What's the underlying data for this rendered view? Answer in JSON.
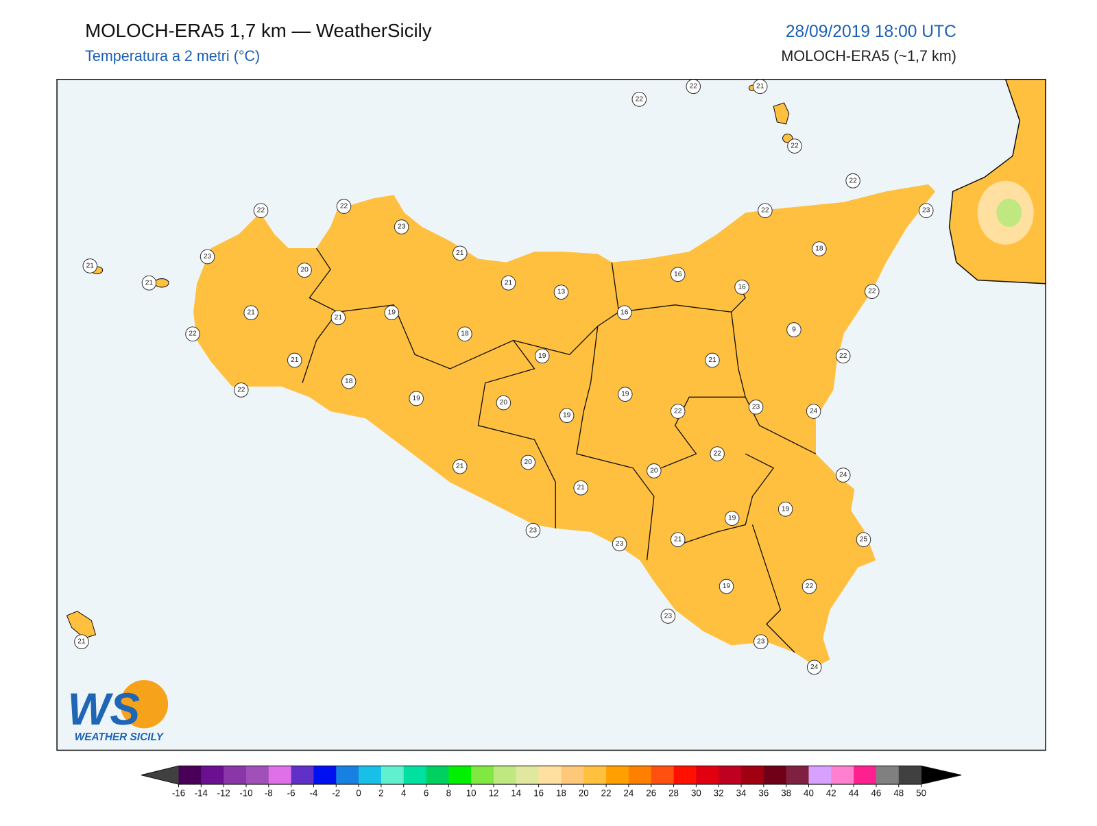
{
  "header": {
    "title": "MOLOCH-ERA5 1,7 km — WeatherSicily",
    "subtitle": "Temperatura a 2 metri (°C)",
    "valid_time": "28/09/2019 18:00 UTC",
    "model": "MOLOCH-ERA5 (~1,7 km)"
  },
  "map": {
    "stations": [
      22,
      22,
      21,
      22,
      22,
      23,
      22,
      18,
      22,
      16,
      16,
      9,
      22,
      16,
      13,
      21,
      21,
      23,
      22,
      22,
      23,
      20,
      21,
      21,
      21,
      21,
      19,
      18,
      19,
      22,
      21,
      22,
      18,
      19,
      20,
      19,
      19,
      21,
      22,
      23,
      24,
      22,
      20,
      20,
      21,
      21,
      24,
      19,
      19,
      25,
      21,
      23,
      23,
      19,
      22,
      23,
      23,
      24,
      21
    ]
  },
  "colorbar": {
    "ticks": [
      -16,
      -14,
      -12,
      -10,
      -8,
      -6,
      -4,
      -2,
      0,
      2,
      4,
      6,
      8,
      10,
      12,
      14,
      16,
      18,
      20,
      22,
      24,
      26,
      28,
      30,
      32,
      34,
      36,
      38,
      40,
      42,
      44,
      46,
      48,
      50
    ],
    "colors": [
      "#4a0058",
      "#6a1090",
      "#8a35a8",
      "#a050b8",
      "#e070e8",
      "#6030c8",
      "#0010f0",
      "#1880e0",
      "#18c0e8",
      "#60f0d0",
      "#00e0a0",
      "#00d060",
      "#00f000",
      "#80e840",
      "#c0e880",
      "#e0e8a0",
      "#ffe0a0",
      "#ffc878",
      "#ffc040",
      "#ffa000",
      "#ff8000",
      "#ff5010",
      "#ff1000",
      "#e00010",
      "#c00020",
      "#a00010",
      "#700018",
      "#802040",
      "#d8a0ff",
      "#ff80d0",
      "#ff2090",
      "#808080",
      "#404040"
    ],
    "under_color": "#404040",
    "over_color": "#000000"
  },
  "logo": {
    "mark": "WS",
    "text": "WEATHER SICILY"
  }
}
